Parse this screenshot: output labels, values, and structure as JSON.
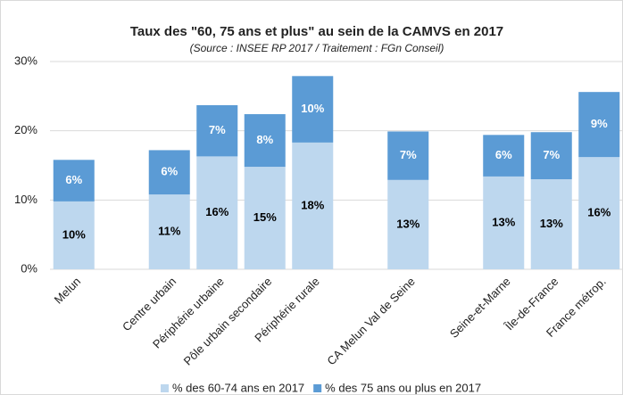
{
  "chart_data": {
    "type": "stacked_bar",
    "title": "Taux des \"60, 75 ans et plus\" au sein de la CAMVS en 2017",
    "subtitle": "(Source : INSEE RP 2017 / Traitement : FGn Conseil)",
    "categories": [
      "Melun",
      null,
      "Centre urbain",
      "Périphérie urbaine",
      "Pôle urbain secondaire",
      "Périphérie rurale",
      null,
      "CA Melun Val de Seine",
      null,
      "Seine-et-Marne",
      "Île-de-France",
      "France métrop."
    ],
    "series": [
      {
        "name": "% des 60-74 ans en 2017",
        "color": "#bdd7ee",
        "label_color": "#000000",
        "values": [
          9.8,
          null,
          10.8,
          16.3,
          14.8,
          18.3,
          null,
          12.9,
          null,
          13.4,
          13.0,
          16.2
        ],
        "value_labels": [
          "10%",
          null,
          "11%",
          "16%",
          "15%",
          "18%",
          null,
          "13%",
          null,
          "13%",
          "13%",
          "16%"
        ]
      },
      {
        "name": "% des 75 ans ou plus en 2017",
        "color": "#5b9bd5",
        "label_color": "#ffffff",
        "values": [
          6.0,
          null,
          6.4,
          7.4,
          7.6,
          9.6,
          null,
          7.0,
          null,
          6.0,
          6.8,
          9.4
        ],
        "value_labels": [
          "6%",
          null,
          "6%",
          "7%",
          "8%",
          "10%",
          null,
          "7%",
          null,
          "6%",
          "7%",
          "9%"
        ]
      }
    ],
    "ylim": [
      0,
      30
    ],
    "yticks": [
      {
        "value": 0,
        "label": "0%"
      },
      {
        "value": 10,
        "label": "10%"
      },
      {
        "value": 20,
        "label": "20%"
      },
      {
        "value": 30,
        "label": "30%"
      }
    ],
    "grid": true,
    "legend": "bottom"
  }
}
